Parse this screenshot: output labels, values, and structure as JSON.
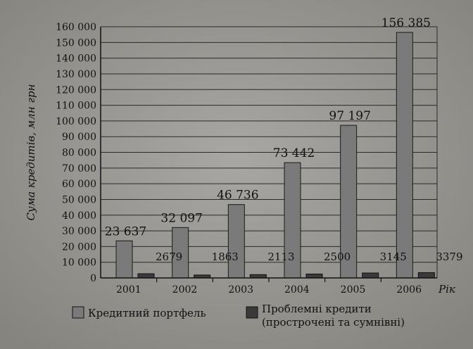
{
  "chart_data": {
    "type": "bar",
    "categories": [
      "2001",
      "2002",
      "2003",
      "2004",
      "2005",
      "2006"
    ],
    "series": [
      {
        "name": "Кредитний портфель",
        "values": [
          23637,
          32097,
          46736,
          73442,
          97197,
          156385
        ],
        "labels": [
          "23 637",
          "32 097",
          "46 736",
          "73 442",
          "97 197",
          "156 385"
        ],
        "color": "#7a7a7a"
      },
      {
        "name": "Проблемні кредити (прострочені та сумнівні)",
        "name_lines": [
          "Проблемні кредити",
          "(прострочені та сумнівні)"
        ],
        "values": [
          2679,
          1863,
          2113,
          2500,
          3145,
          3379
        ],
        "labels": [
          "2679",
          "1863",
          "2113",
          "2500",
          "3145",
          "3379"
        ],
        "color": "#3a3a3a"
      }
    ],
    "xlabel": "Рік",
    "ylabel": "Сума кредитів, млн грн",
    "ylim": [
      0,
      160000
    ],
    "yticks": [
      0,
      10000,
      20000,
      30000,
      40000,
      50000,
      60000,
      70000,
      80000,
      90000,
      100000,
      110000,
      120000,
      130000,
      140000,
      150000,
      160000
    ],
    "ytick_labels": [
      "0",
      "10 000",
      "20 000",
      "30 000",
      "40 000",
      "50 000",
      "60 000",
      "70 000",
      "80 000",
      "90 000",
      "100 000",
      "110 000",
      "120 000",
      "130 000",
      "140 000",
      "150 000",
      "160 000"
    ],
    "grid": true,
    "legend_position": "bottom"
  }
}
